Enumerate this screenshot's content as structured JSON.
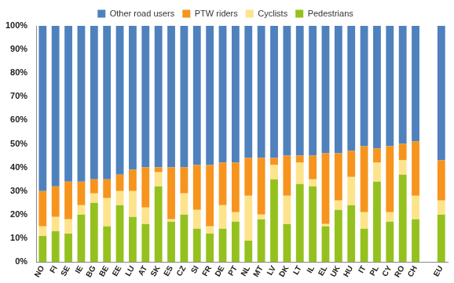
{
  "chart_data": {
    "type": "bar",
    "stacked": true,
    "legend": "top",
    "grid": false,
    "categories": [
      "NO",
      "FI",
      "SE",
      "IE",
      "BG",
      "BE",
      "EE",
      "LU",
      "AT",
      "SK",
      "ES",
      "CZ",
      "SI",
      "FR",
      "DE",
      "PT",
      "NL",
      "MT",
      "LV",
      "DK",
      "LT",
      "IL",
      "EL",
      "UK",
      "HU",
      "IT",
      "PL",
      "CY",
      "RO",
      "CH",
      null,
      "EU"
    ],
    "series": [
      {
        "name": "Pedestrians",
        "color": "#95c11f",
        "values": [
          11,
          13,
          12,
          20,
          25,
          15,
          24,
          19,
          16,
          32,
          17,
          20,
          14,
          12,
          14,
          17,
          9,
          18,
          35,
          16,
          33,
          32,
          15,
          22,
          24,
          14,
          34,
          17,
          37,
          18,
          null,
          20
        ]
      },
      {
        "name": "Cyclists",
        "color": "#fde48c",
        "values": [
          4,
          6,
          6,
          4,
          4,
          12,
          6,
          11,
          7,
          6,
          1,
          9,
          8,
          3,
          10,
          4,
          19,
          2,
          6,
          12,
          9,
          3,
          1,
          4,
          12,
          7,
          8,
          4,
          6,
          10,
          null,
          6
        ]
      },
      {
        "name": "PTW riders",
        "color": "#f7941d",
        "values": [
          15,
          13,
          16,
          10,
          6,
          8,
          7,
          9,
          17,
          2,
          22,
          11,
          19,
          26,
          18,
          21,
          16,
          24,
          3,
          17,
          3,
          10,
          30,
          20,
          11,
          28,
          6,
          28,
          7,
          23,
          null,
          17
        ]
      },
      {
        "name": "Other road users",
        "color": "#4f81bd",
        "values": [
          70,
          68,
          66,
          66,
          65,
          65,
          63,
          61,
          60,
          60,
          60,
          60,
          59,
          59,
          58,
          58,
          56,
          56,
          56,
          55,
          55,
          55,
          54,
          54,
          53,
          51,
          52,
          51,
          50,
          49,
          null,
          57
        ]
      }
    ],
    "ylim": [
      0,
      100
    ],
    "yticks": [
      {
        "value": 0,
        "label": "0%"
      },
      {
        "value": 10,
        "label": "10%"
      },
      {
        "value": 20,
        "label": "20%"
      },
      {
        "value": 30,
        "label": "30%"
      },
      {
        "value": 40,
        "label": "40%"
      },
      {
        "value": 50,
        "label": "50%"
      },
      {
        "value": 60,
        "label": "60%"
      },
      {
        "value": 70,
        "label": "70%"
      },
      {
        "value": 80,
        "label": "80%"
      },
      {
        "value": 90,
        "label": "90%"
      },
      {
        "value": 100,
        "label": "100%"
      }
    ]
  }
}
